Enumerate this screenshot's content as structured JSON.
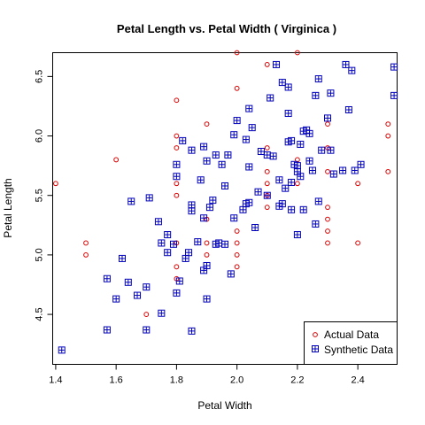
{
  "chart_data": {
    "type": "scatter",
    "title": "Petal Length  vs.  Petal Width  ( Virginica )",
    "xlabel": "Petal Width",
    "ylabel": "Petal Length",
    "xlim": [
      1.39,
      2.53
    ],
    "ylim": [
      4.08,
      6.7
    ],
    "x_ticks": [
      1.4,
      1.6,
      1.8,
      2.0,
      2.2,
      2.4
    ],
    "x_tick_labels": [
      "1.4",
      "1.6",
      "1.8",
      "2.0",
      "2.2",
      "2.4"
    ],
    "y_ticks": [
      4.5,
      5.0,
      5.5,
      6.0,
      6.5
    ],
    "y_tick_labels": [
      "4.5",
      "5.0",
      "5.5",
      "6.0",
      "6.5"
    ],
    "grid": false,
    "legend_position": "bottom-right",
    "series": [
      {
        "name": "Actual Data",
        "color": "#dd0000",
        "marker": "circle",
        "points": [
          [
            1.4,
            5.6
          ],
          [
            1.5,
            5.1
          ],
          [
            1.5,
            5.0
          ],
          [
            1.6,
            5.8
          ],
          [
            1.7,
            4.5
          ],
          [
            1.8,
            6.3
          ],
          [
            1.8,
            6.0
          ],
          [
            1.8,
            5.9
          ],
          [
            1.8,
            5.6
          ],
          [
            1.8,
            5.5
          ],
          [
            1.8,
            5.1
          ],
          [
            1.8,
            4.9
          ],
          [
            1.8,
            4.8
          ],
          [
            1.9,
            6.1
          ],
          [
            1.9,
            5.3
          ],
          [
            1.9,
            5.1
          ],
          [
            1.9,
            5.0
          ],
          [
            2.0,
            6.7
          ],
          [
            2.0,
            6.4
          ],
          [
            2.0,
            5.2
          ],
          [
            2.0,
            5.1
          ],
          [
            2.0,
            5.0
          ],
          [
            2.0,
            4.9
          ],
          [
            2.1,
            6.6
          ],
          [
            2.1,
            5.9
          ],
          [
            2.1,
            5.7
          ],
          [
            2.1,
            5.6
          ],
          [
            2.1,
            5.5
          ],
          [
            2.1,
            5.4
          ],
          [
            2.2,
            6.7
          ],
          [
            2.2,
            5.8
          ],
          [
            2.2,
            5.6
          ],
          [
            2.3,
            6.1
          ],
          [
            2.3,
            5.9
          ],
          [
            2.3,
            5.7
          ],
          [
            2.3,
            5.4
          ],
          [
            2.3,
            5.3
          ],
          [
            2.3,
            5.2
          ],
          [
            2.3,
            5.1
          ],
          [
            2.4,
            5.6
          ],
          [
            2.4,
            5.1
          ],
          [
            2.5,
            6.1
          ],
          [
            2.5,
            6.0
          ],
          [
            2.5,
            5.7
          ]
        ]
      },
      {
        "name": "Synthetic Data",
        "color": "#0000bb",
        "marker": "boxed-plus",
        "points": [
          [
            1.42,
            4.2
          ],
          [
            1.57,
            4.37
          ],
          [
            1.57,
            4.8
          ],
          [
            1.6,
            4.63
          ],
          [
            1.62,
            4.97
          ],
          [
            1.64,
            4.77
          ],
          [
            1.65,
            5.45
          ],
          [
            1.67,
            4.66
          ],
          [
            1.7,
            4.37
          ],
          [
            1.7,
            4.73
          ],
          [
            1.71,
            5.48
          ],
          [
            1.74,
            5.28
          ],
          [
            1.75,
            4.51
          ],
          [
            1.75,
            5.1
          ],
          [
            1.77,
            5.17
          ],
          [
            1.77,
            5.02
          ],
          [
            1.79,
            5.09
          ],
          [
            1.8,
            4.68
          ],
          [
            1.8,
            5.66
          ],
          [
            1.8,
            5.76
          ],
          [
            1.81,
            4.78
          ],
          [
            1.82,
            5.96
          ],
          [
            1.83,
            4.97
          ],
          [
            1.84,
            5.02
          ],
          [
            1.85,
            4.36
          ],
          [
            1.85,
            5.88
          ],
          [
            1.85,
            5.42
          ],
          [
            1.85,
            5.37
          ],
          [
            1.87,
            5.11
          ],
          [
            1.88,
            5.63
          ],
          [
            1.89,
            4.87
          ],
          [
            1.89,
            5.31
          ],
          [
            1.9,
            4.63
          ],
          [
            1.9,
            4.91
          ],
          [
            1.89,
            5.91
          ],
          [
            1.9,
            5.79
          ],
          [
            1.91,
            5.4
          ],
          [
            1.92,
            5.46
          ],
          [
            1.93,
            5.09
          ],
          [
            1.93,
            5.84
          ],
          [
            1.94,
            5.1
          ],
          [
            1.95,
            5.76
          ],
          [
            1.96,
            5.09
          ],
          [
            1.96,
            5.58
          ],
          [
            1.97,
            5.84
          ],
          [
            1.98,
            4.84
          ],
          [
            1.99,
            5.31
          ],
          [
            1.99,
            6.01
          ],
          [
            2.0,
            6.13
          ],
          [
            2.02,
            5.38
          ],
          [
            2.03,
            5.97
          ],
          [
            2.03,
            5.43
          ],
          [
            2.04,
            5.74
          ],
          [
            2.04,
            6.23
          ],
          [
            2.04,
            5.44
          ],
          [
            2.05,
            6.07
          ],
          [
            2.06,
            5.23
          ],
          [
            2.07,
            5.53
          ],
          [
            2.08,
            5.87
          ],
          [
            2.1,
            5.84
          ],
          [
            2.1,
            5.5
          ],
          [
            2.11,
            6.32
          ],
          [
            2.12,
            5.83
          ],
          [
            2.13,
            6.6
          ],
          [
            2.14,
            5.41
          ],
          [
            2.14,
            5.63
          ],
          [
            2.15,
            5.43
          ],
          [
            2.15,
            6.45
          ],
          [
            2.16,
            5.56
          ],
          [
            2.17,
            6.41
          ],
          [
            2.17,
            5.95
          ],
          [
            2.17,
            6.19
          ],
          [
            2.18,
            5.38
          ],
          [
            2.18,
            5.96
          ],
          [
            2.18,
            5.61
          ],
          [
            2.19,
            5.76
          ],
          [
            2.2,
            5.17
          ],
          [
            2.2,
            5.75
          ],
          [
            2.2,
            5.7
          ],
          [
            2.21,
            5.93
          ],
          [
            2.21,
            5.66
          ],
          [
            2.22,
            5.38
          ],
          [
            2.22,
            6.04
          ],
          [
            2.23,
            6.05
          ],
          [
            2.24,
            6.02
          ],
          [
            2.24,
            5.79
          ],
          [
            2.25,
            5.71
          ],
          [
            2.26,
            5.26
          ],
          [
            2.26,
            6.34
          ],
          [
            2.27,
            5.45
          ],
          [
            2.27,
            6.48
          ],
          [
            2.28,
            5.88
          ],
          [
            2.3,
            6.15
          ],
          [
            2.31,
            5.88
          ],
          [
            2.31,
            6.36
          ],
          [
            2.32,
            5.68
          ],
          [
            2.35,
            5.71
          ],
          [
            2.36,
            6.6
          ],
          [
            2.37,
            6.22
          ],
          [
            2.38,
            6.55
          ],
          [
            2.39,
            5.71
          ],
          [
            2.41,
            5.76
          ],
          [
            2.52,
            6.58
          ],
          [
            2.52,
            6.34
          ]
        ]
      }
    ]
  }
}
